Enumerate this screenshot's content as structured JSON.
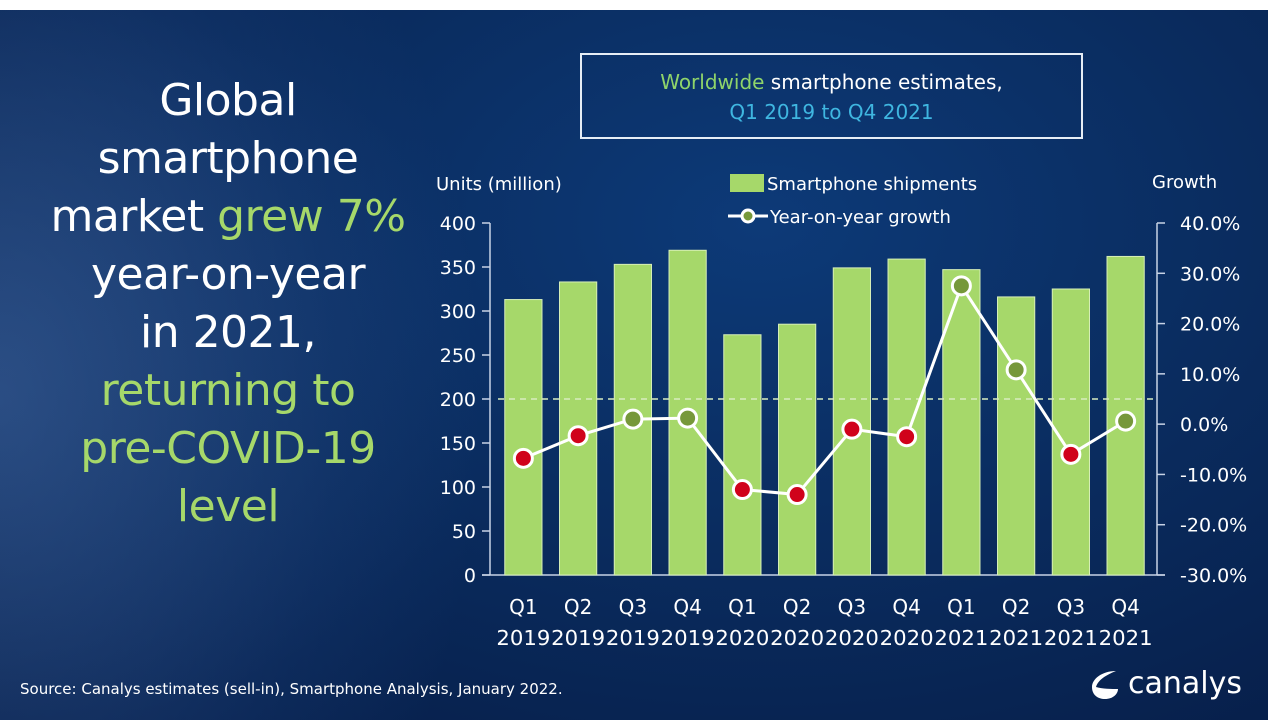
{
  "headline": {
    "line1": "Global",
    "line2": "smartphone",
    "line3a": "market ",
    "line3b": "grew 7%",
    "line4": "year-on-year",
    "line5": "in 2021,",
    "line6": "returning to",
    "line7": "pre-COVID-19",
    "line8": "level"
  },
  "title_box": {
    "highlight": "Worldwide",
    "rest": " smartphone estimates,",
    "line2": "Q1 2019 to Q4 2021"
  },
  "source": "Source: Canalys estimates (sell-in), Smartphone Analysis, January 2022.",
  "logo": "canalys",
  "colors": {
    "bar": "#a6d86a",
    "negative_point": "#d0021b",
    "positive_point": "#76983a",
    "line": "#ffffff"
  },
  "chart_data": {
    "type": "bar",
    "ylabel": "Units (million)",
    "y2label": "Growth",
    "categories": [
      [
        "Q1",
        "2019"
      ],
      [
        "Q2",
        "2019"
      ],
      [
        "Q3",
        "2019"
      ],
      [
        "Q4",
        "2019"
      ],
      [
        "Q1",
        "2020"
      ],
      [
        "Q2",
        "2020"
      ],
      [
        "Q3",
        "2020"
      ],
      [
        "Q4",
        "2020"
      ],
      [
        "Q1",
        "2021"
      ],
      [
        "Q2",
        "2021"
      ],
      [
        "Q3",
        "2021"
      ],
      [
        "Q4",
        "2021"
      ]
    ],
    "series": [
      {
        "name": "Smartphone shipments",
        "type": "bar",
        "axis": "left",
        "values": [
          313,
          333,
          353,
          369,
          273,
          285,
          349,
          359,
          347,
          316,
          325,
          362
        ]
      },
      {
        "name": "Year-on-year growth",
        "type": "line",
        "axis": "right",
        "values": [
          -6.8,
          -2.3,
          1.0,
          1.2,
          -13.0,
          -14.0,
          -1.0,
          -2.5,
          27.5,
          10.8,
          -6.0,
          0.6
        ]
      }
    ],
    "ylim": [
      0,
      400
    ],
    "yticks": [
      "0",
      "50",
      "100",
      "150",
      "200",
      "250",
      "300",
      "350",
      "400"
    ],
    "y2lim": [
      -30,
      40
    ],
    "y2ticks": [
      "-30.0%",
      "-20.0%",
      "-10.0%",
      "0.0%",
      "10.0%",
      "20.0%",
      "30.0%",
      "40.0%"
    ],
    "reference_line_left_units": 200,
    "legend_placement": "top-center"
  }
}
